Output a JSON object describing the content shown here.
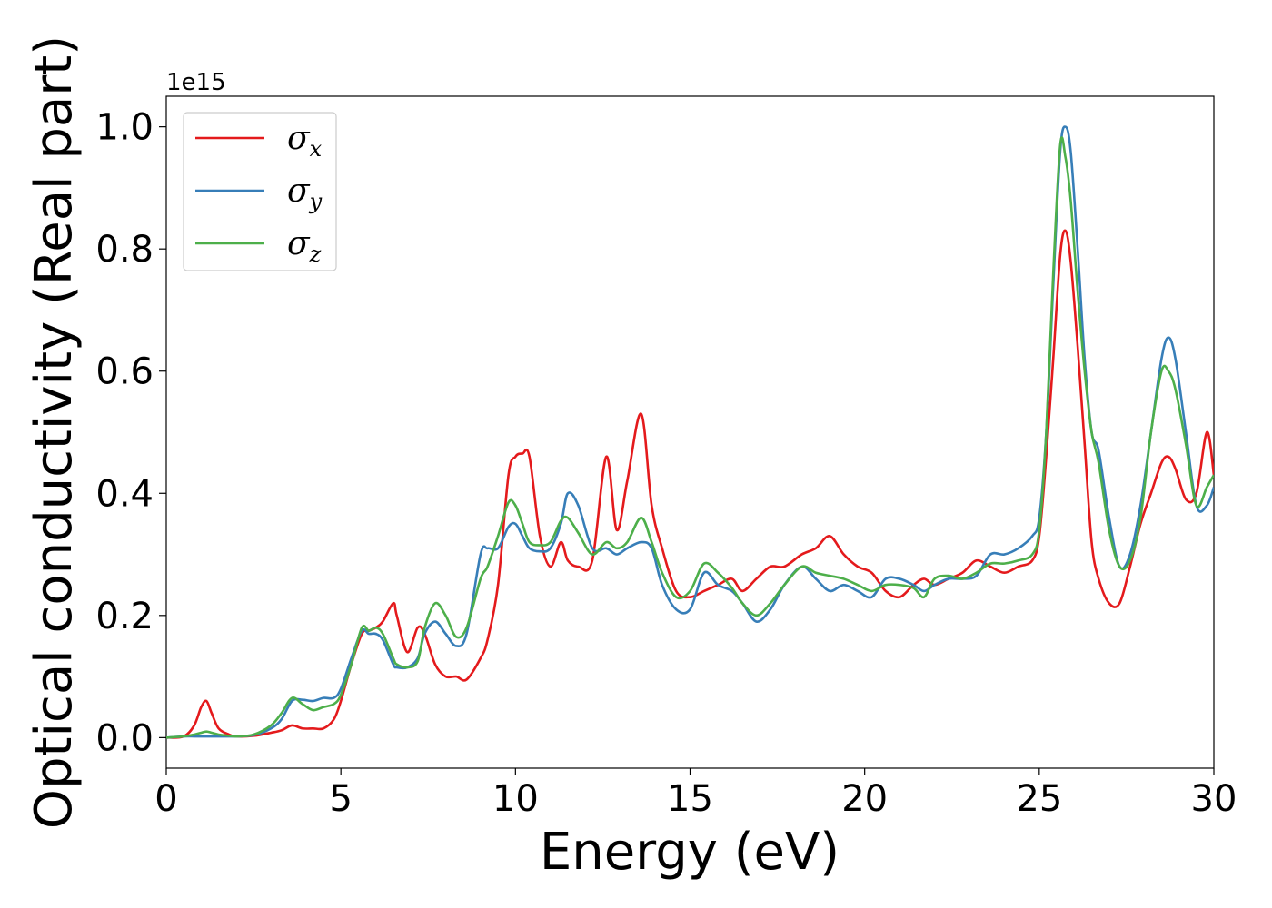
{
  "chart_data": {
    "type": "line",
    "xlabel": "Energy (eV)",
    "ylabel": "Optical conductivity (Real part)",
    "y_offset_label": "1e15",
    "xlim": [
      0,
      30
    ],
    "ylim": [
      -0.05,
      1.05
    ],
    "x_ticks": [
      0,
      5,
      10,
      15,
      20,
      25,
      30
    ],
    "x_tick_labels": [
      "0",
      "5",
      "10",
      "15",
      "20",
      "25",
      "30"
    ],
    "y_ticks": [
      0.0,
      0.2,
      0.4,
      0.6,
      0.8,
      1.0
    ],
    "y_tick_labels": [
      "0.0",
      "0.2",
      "0.4",
      "0.6",
      "0.8",
      "1.0"
    ],
    "grid": false,
    "legend_position": "top-left",
    "x": [
      0,
      0.5,
      0.8,
      1,
      1.15,
      1.3,
      1.5,
      1.8,
      2,
      2.5,
      3,
      3.3,
      3.6,
      3.9,
      4.2,
      4.5,
      4.8,
      5,
      5.3,
      5.6,
      5.8,
      6,
      6.2,
      6.5,
      6.6,
      6.9,
      7.2,
      7.4,
      7.7,
      8,
      8.3,
      8.6,
      9,
      9.2,
      9.5,
      9.8,
      10,
      10.2,
      10.4,
      10.7,
      11,
      11.3,
      11.5,
      11.8,
      12.2,
      12.6,
      12.9,
      13.2,
      13.6,
      13.9,
      14.2,
      14.6,
      15,
      15.4,
      15.8,
      16.2,
      16.5,
      16.9,
      17.3,
      17.7,
      18.2,
      18.6,
      19,
      19.4,
      19.8,
      20.2,
      20.6,
      21,
      21.4,
      21.7,
      22,
      22.4,
      22.8,
      23.2,
      23.6,
      24,
      24.4,
      24.8,
      25,
      25.2,
      25.4,
      25.6,
      25.75,
      25.9,
      26.1,
      26.3,
      26.5,
      26.7,
      27,
      27.3,
      27.6,
      27.9,
      28.2,
      28.5,
      28.7,
      28.9,
      29.2,
      29.5,
      29.8,
      30
    ],
    "series": [
      {
        "name": "σx",
        "color": "#e41a1c",
        "values": [
          0,
          0.002,
          0.02,
          0.05,
          0.06,
          0.04,
          0.015,
          0.005,
          0.002,
          0.003,
          0.008,
          0.012,
          0.02,
          0.015,
          0.015,
          0.015,
          0.03,
          0.06,
          0.12,
          0.17,
          0.175,
          0.18,
          0.19,
          0.22,
          0.2,
          0.14,
          0.18,
          0.17,
          0.12,
          0.1,
          0.1,
          0.095,
          0.13,
          0.16,
          0.25,
          0.43,
          0.46,
          0.465,
          0.46,
          0.33,
          0.28,
          0.32,
          0.29,
          0.28,
          0.29,
          0.46,
          0.34,
          0.42,
          0.53,
          0.38,
          0.31,
          0.24,
          0.23,
          0.24,
          0.25,
          0.26,
          0.24,
          0.26,
          0.28,
          0.28,
          0.3,
          0.31,
          0.33,
          0.3,
          0.28,
          0.27,
          0.24,
          0.23,
          0.25,
          0.26,
          0.25,
          0.26,
          0.27,
          0.29,
          0.28,
          0.27,
          0.28,
          0.29,
          0.33,
          0.46,
          0.62,
          0.79,
          0.83,
          0.78,
          0.64,
          0.48,
          0.32,
          0.26,
          0.22,
          0.22,
          0.28,
          0.35,
          0.4,
          0.45,
          0.46,
          0.44,
          0.39,
          0.4,
          0.5,
          0.43
        ]
      },
      {
        "name": "σy",
        "color": "#377eb8",
        "values": [
          0,
          0.002,
          0.002,
          0.002,
          0.002,
          0.002,
          0.002,
          0.002,
          0.002,
          0.004,
          0.015,
          0.03,
          0.06,
          0.062,
          0.06,
          0.065,
          0.065,
          0.08,
          0.13,
          0.175,
          0.17,
          0.17,
          0.16,
          0.12,
          0.115,
          0.115,
          0.13,
          0.17,
          0.19,
          0.17,
          0.15,
          0.17,
          0.3,
          0.31,
          0.31,
          0.345,
          0.35,
          0.33,
          0.31,
          0.305,
          0.31,
          0.35,
          0.4,
          0.38,
          0.31,
          0.31,
          0.3,
          0.31,
          0.32,
          0.31,
          0.25,
          0.21,
          0.21,
          0.27,
          0.25,
          0.24,
          0.22,
          0.19,
          0.21,
          0.25,
          0.28,
          0.26,
          0.24,
          0.25,
          0.24,
          0.23,
          0.26,
          0.26,
          0.25,
          0.24,
          0.25,
          0.26,
          0.26,
          0.265,
          0.3,
          0.3,
          0.31,
          0.33,
          0.36,
          0.5,
          0.74,
          0.96,
          1.0,
          0.96,
          0.8,
          0.62,
          0.5,
          0.47,
          0.36,
          0.28,
          0.3,
          0.38,
          0.5,
          0.62,
          0.655,
          0.62,
          0.5,
          0.38,
          0.38,
          0.41
        ]
      },
      {
        "name": "σz",
        "color": "#4daf4a",
        "values": [
          0,
          0.002,
          0.005,
          0.008,
          0.01,
          0.008,
          0.005,
          0.003,
          0.002,
          0.005,
          0.02,
          0.04,
          0.065,
          0.055,
          0.045,
          0.05,
          0.055,
          0.07,
          0.12,
          0.18,
          0.175,
          0.18,
          0.17,
          0.13,
          0.12,
          0.115,
          0.125,
          0.18,
          0.22,
          0.2,
          0.165,
          0.18,
          0.26,
          0.28,
          0.33,
          0.385,
          0.38,
          0.35,
          0.32,
          0.315,
          0.32,
          0.355,
          0.36,
          0.335,
          0.3,
          0.32,
          0.31,
          0.32,
          0.36,
          0.32,
          0.27,
          0.23,
          0.24,
          0.285,
          0.27,
          0.245,
          0.22,
          0.2,
          0.22,
          0.25,
          0.28,
          0.27,
          0.265,
          0.26,
          0.25,
          0.24,
          0.25,
          0.25,
          0.245,
          0.23,
          0.26,
          0.265,
          0.26,
          0.27,
          0.285,
          0.285,
          0.29,
          0.3,
          0.34,
          0.5,
          0.76,
          0.97,
          0.95,
          0.88,
          0.73,
          0.6,
          0.5,
          0.45,
          0.34,
          0.28,
          0.29,
          0.36,
          0.5,
          0.6,
          0.6,
          0.57,
          0.48,
          0.38,
          0.41,
          0.43
        ]
      }
    ]
  }
}
